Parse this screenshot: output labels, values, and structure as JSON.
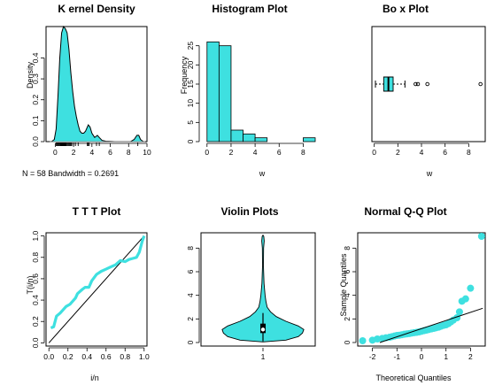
{
  "colors": {
    "fill": "#3ee0e0",
    "stroke": "#000000"
  },
  "chart_data": [
    {
      "type": "line",
      "title": "K ernel Density",
      "xlabel": "",
      "ylabel": "Density",
      "xlim": [
        -1,
        10
      ],
      "ylim": [
        0,
        0.55
      ],
      "xticks": [
        0,
        2,
        4,
        6,
        8,
        10
      ],
      "yticks": [
        0.0,
        0.1,
        0.2,
        0.3,
        0.4
      ],
      "note": "N = 58   Bandwidth = 0.2691",
      "curve": [
        [
          -0.4,
          0
        ],
        [
          -0.1,
          0.01
        ],
        [
          0.1,
          0.06
        ],
        [
          0.3,
          0.22
        ],
        [
          0.5,
          0.4
        ],
        [
          0.7,
          0.52
        ],
        [
          0.9,
          0.55
        ],
        [
          1.1,
          0.54
        ],
        [
          1.3,
          0.52
        ],
        [
          1.5,
          0.44
        ],
        [
          1.7,
          0.33
        ],
        [
          1.9,
          0.24
        ],
        [
          2.1,
          0.17
        ],
        [
          2.3,
          0.12
        ],
        [
          2.5,
          0.08
        ],
        [
          2.7,
          0.05
        ],
        [
          2.9,
          0.04
        ],
        [
          3.1,
          0.04
        ],
        [
          3.3,
          0.05
        ],
        [
          3.6,
          0.08
        ],
        [
          3.8,
          0.07
        ],
        [
          4.0,
          0.04
        ],
        [
          4.3,
          0.02
        ],
        [
          4.6,
          0.03
        ],
        [
          4.8,
          0.02
        ],
        [
          5.1,
          0.006
        ],
        [
          5.5,
          0.002
        ],
        [
          6.5,
          0.0
        ],
        [
          8.2,
          0.0
        ],
        [
          8.6,
          0.01
        ],
        [
          8.9,
          0.03
        ],
        [
          9.1,
          0.03
        ],
        [
          9.3,
          0.01
        ],
        [
          9.6,
          0.0
        ]
      ],
      "rug": [
        0.1,
        0.2,
        0.3,
        0.4,
        0.5,
        0.55,
        0.6,
        0.65,
        0.7,
        0.75,
        0.8,
        0.85,
        0.9,
        0.95,
        1.0,
        1.05,
        1.1,
        1.15,
        1.2,
        1.3,
        1.4,
        1.5,
        1.6,
        1.7,
        1.8,
        2.0,
        2.2,
        2.5,
        3.5,
        3.6,
        3.7,
        4.5,
        4.8,
        9.0
      ]
    },
    {
      "type": "bar",
      "title": "Histogram Plot",
      "xlabel": "w",
      "ylabel": "Frequency",
      "xlim": [
        -0.5,
        9
      ],
      "ylim": [
        0,
        30
      ],
      "xticks": [
        0,
        2,
        4,
        6,
        8
      ],
      "yticks": [
        0,
        5,
        10,
        15,
        20,
        25
      ],
      "bins": [
        [
          0,
          1,
          26
        ],
        [
          1,
          2,
          25
        ],
        [
          2,
          3,
          3
        ],
        [
          3,
          4,
          2
        ],
        [
          4,
          5,
          1
        ],
        [
          8,
          9,
          1
        ]
      ]
    },
    {
      "type": "box",
      "title": "Bo  x Plot",
      "xlabel": "w",
      "ylabel": "",
      "xlim": [
        -0.2,
        9.4
      ],
      "xticks": [
        0,
        2,
        4,
        6,
        8
      ],
      "stats": {
        "whisker_low": 0.1,
        "q1": 0.8,
        "median": 1.2,
        "q3": 1.6,
        "whisker_high": 2.6
      },
      "outliers": [
        3.5,
        3.7,
        4.5,
        9.0
      ]
    },
    {
      "type": "line",
      "title": "T T T Plot",
      "xlabel": "i/n",
      "ylabel": "T(i/n)",
      "xlim": [
        0,
        1
      ],
      "ylim": [
        0,
        1
      ],
      "xticks": [
        0.0,
        0.2,
        0.4,
        0.6,
        0.8,
        1.0
      ],
      "yticks": [
        0.0,
        0.2,
        0.4,
        0.6,
        0.8,
        1.0
      ],
      "reference": [
        [
          0,
          0
        ],
        [
          1,
          1
        ]
      ],
      "curve": [
        [
          0.02,
          0.14
        ],
        [
          0.05,
          0.15
        ],
        [
          0.08,
          0.25
        ],
        [
          0.12,
          0.28
        ],
        [
          0.18,
          0.34
        ],
        [
          0.22,
          0.36
        ],
        [
          0.28,
          0.42
        ],
        [
          0.3,
          0.46
        ],
        [
          0.35,
          0.5
        ],
        [
          0.38,
          0.52
        ],
        [
          0.42,
          0.52
        ],
        [
          0.45,
          0.58
        ],
        [
          0.5,
          0.64
        ],
        [
          0.55,
          0.67
        ],
        [
          0.6,
          0.69
        ],
        [
          0.65,
          0.71
        ],
        [
          0.7,
          0.73
        ],
        [
          0.75,
          0.77
        ],
        [
          0.8,
          0.76
        ],
        [
          0.84,
          0.78
        ],
        [
          0.88,
          0.79
        ],
        [
          0.92,
          0.8
        ],
        [
          0.95,
          0.85
        ],
        [
          0.98,
          0.95
        ],
        [
          1.0,
          1.0
        ]
      ]
    },
    {
      "type": "violin",
      "title": "Violin Plots",
      "xlabel": "",
      "ylabel": "",
      "xticks": [
        "1"
      ],
      "ylim": [
        -0.3,
        9.3
      ],
      "yticks": [
        0,
        2,
        4,
        6,
        8
      ],
      "profile": [
        [
          0.05,
          0.0
        ],
        [
          0.2,
          0.55
        ],
        [
          0.5,
          0.85
        ],
        [
          0.8,
          0.95
        ],
        [
          1.1,
          0.98
        ],
        [
          1.4,
          0.85
        ],
        [
          1.8,
          0.55
        ],
        [
          2.2,
          0.32
        ],
        [
          2.6,
          0.18
        ],
        [
          3.0,
          0.1
        ],
        [
          3.5,
          0.07
        ],
        [
          4.0,
          0.05
        ],
        [
          5.0,
          0.025
        ],
        [
          6.5,
          0.01
        ],
        [
          8.0,
          0.015
        ],
        [
          8.6,
          0.03
        ],
        [
          9.0,
          0.02
        ],
        [
          9.1,
          0.0
        ]
      ],
      "box": {
        "q1": 0.8,
        "median": 1.1,
        "q3": 1.6,
        "whisker_low": 0.1,
        "whisker_high": 2.5
      }
    },
    {
      "type": "scatter",
      "title": "Normal Q-Q Plot",
      "xlabel": "Theoretical Quantiles",
      "ylabel": "Sample Quantiles",
      "xlim": [
        -2.5,
        2.5
      ],
      "ylim": [
        -0.3,
        9.3
      ],
      "xticks": [
        -2,
        -1,
        0,
        1,
        2
      ],
      "yticks": [
        0,
        2,
        4,
        6,
        8
      ],
      "reference": [
        [
          -1.7,
          0.0
        ],
        [
          2.5,
          2.9
        ]
      ],
      "points": [
        [
          -2.4,
          0.15
        ],
        [
          -2.0,
          0.2
        ],
        [
          -1.8,
          0.3
        ],
        [
          -1.6,
          0.35
        ],
        [
          -1.45,
          0.4
        ],
        [
          -1.3,
          0.45
        ],
        [
          -1.2,
          0.5
        ],
        [
          -1.1,
          0.55
        ],
        [
          -1.0,
          0.6
        ],
        [
          -0.9,
          0.62
        ],
        [
          -0.8,
          0.66
        ],
        [
          -0.7,
          0.7
        ],
        [
          -0.6,
          0.73
        ],
        [
          -0.5,
          0.76
        ],
        [
          -0.4,
          0.8
        ],
        [
          -0.3,
          0.83
        ],
        [
          -0.2,
          0.86
        ],
        [
          -0.1,
          0.9
        ],
        [
          0.0,
          0.95
        ],
        [
          0.1,
          1.0
        ],
        [
          0.2,
          1.05
        ],
        [
          0.3,
          1.1
        ],
        [
          0.4,
          1.15
        ],
        [
          0.5,
          1.2
        ],
        [
          0.6,
          1.25
        ],
        [
          0.7,
          1.3
        ],
        [
          0.8,
          1.38
        ],
        [
          0.9,
          1.45
        ],
        [
          1.0,
          1.5
        ],
        [
          1.1,
          1.6
        ],
        [
          1.2,
          1.75
        ],
        [
          1.3,
          1.9
        ],
        [
          1.45,
          2.1
        ],
        [
          1.55,
          2.6
        ],
        [
          1.65,
          3.5
        ],
        [
          1.8,
          3.7
        ],
        [
          2.0,
          4.6
        ],
        [
          2.45,
          9.0
        ]
      ]
    }
  ]
}
